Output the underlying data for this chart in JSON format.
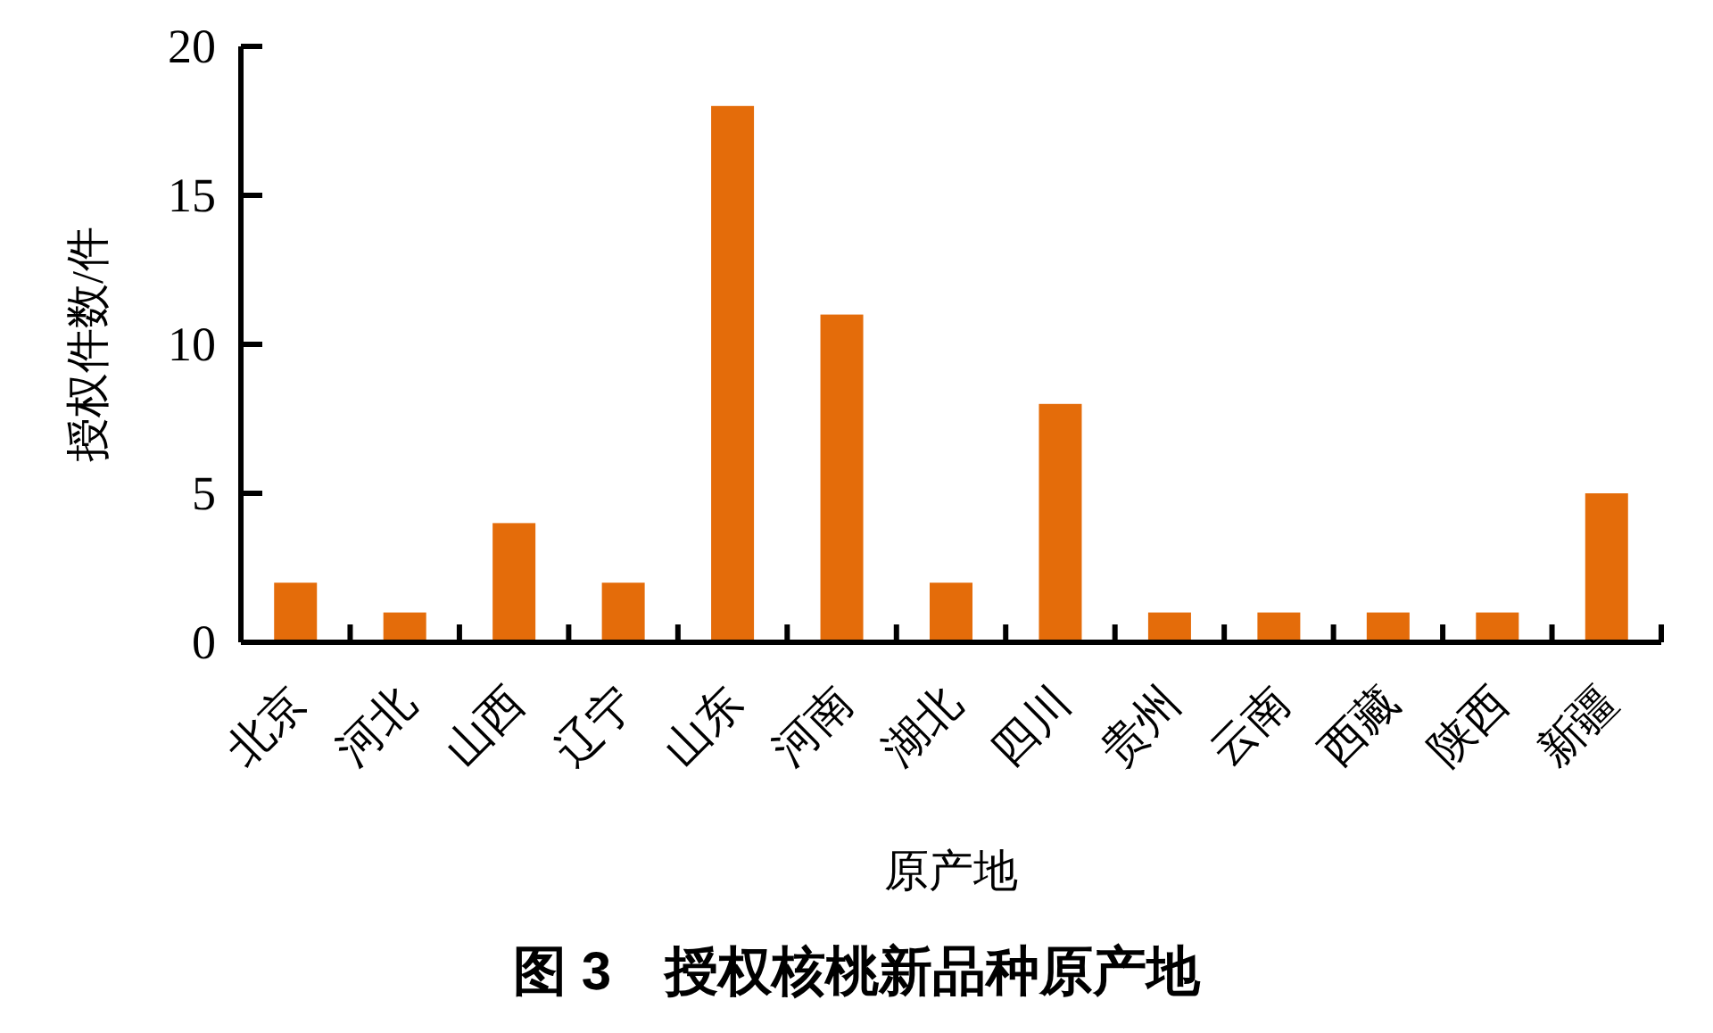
{
  "chart_data": {
    "type": "bar",
    "title": "图 3　授权核桃新品种原产地",
    "xlabel": "原产地",
    "ylabel": "授权件数/件",
    "categories": [
      "北京",
      "河北",
      "山西",
      "辽宁",
      "山东",
      "河南",
      "湖北",
      "四川",
      "贵州",
      "云南",
      "西藏",
      "陕西",
      "新疆"
    ],
    "values": [
      2,
      1,
      4,
      2,
      18,
      11,
      2,
      8,
      1,
      1,
      1,
      1,
      5
    ],
    "color": "#e46c0a",
    "ylim": [
      0,
      20
    ],
    "yticks": [
      0,
      5,
      10,
      15,
      20
    ]
  }
}
